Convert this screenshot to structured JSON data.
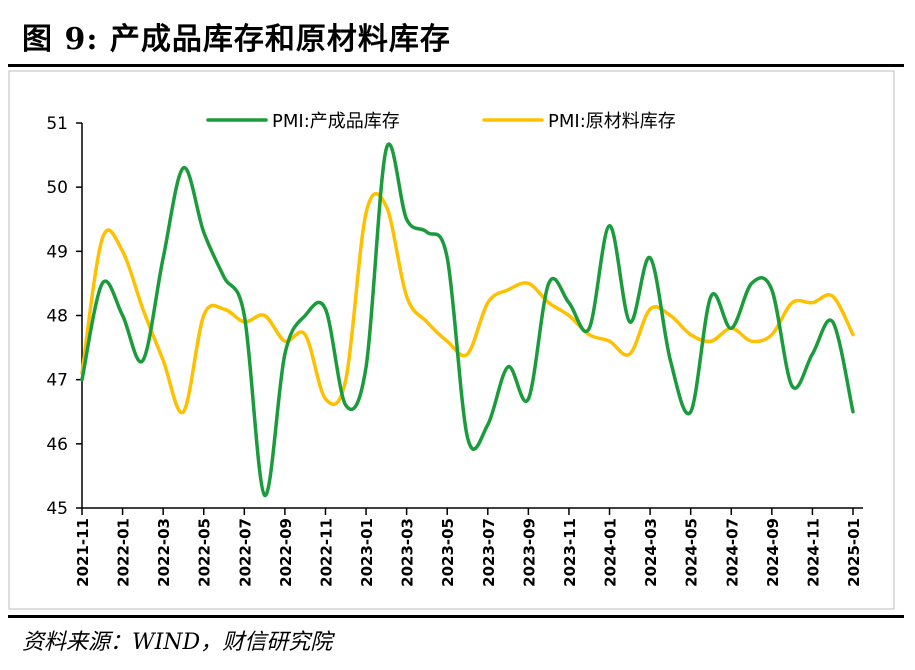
{
  "figure": {
    "title": "图 9:  产成品库存和原材料库存",
    "source": "资料来源：WIND，财信研究院"
  },
  "colors": {
    "series1": "#1a9b3c",
    "series2": "#ffc000",
    "axis": "#000000",
    "frame": "#bfbfbf"
  },
  "chart_data": {
    "type": "line",
    "x": [
      "2021-11",
      "2021-12",
      "2022-01",
      "2022-02",
      "2022-03",
      "2022-04",
      "2022-05",
      "2022-06",
      "2022-07",
      "2022-08",
      "2022-09",
      "2022-10",
      "2022-11",
      "2022-12",
      "2023-01",
      "2023-02",
      "2023-03",
      "2023-04",
      "2023-05",
      "2023-06",
      "2023-07",
      "2023-08",
      "2023-09",
      "2023-10",
      "2023-11",
      "2023-12",
      "2024-01",
      "2024-02",
      "2024-03",
      "2024-04",
      "2024-05",
      "2024-06",
      "2024-07",
      "2024-08",
      "2024-09",
      "2024-10",
      "2024-11",
      "2024-12",
      "2025-01"
    ],
    "tick_labels": [
      "2021-11",
      "2022-01",
      "2022-03",
      "2022-05",
      "2022-07",
      "2022-09",
      "2022-11",
      "2023-01",
      "2023-03",
      "2023-05",
      "2023-07",
      "2023-09",
      "2023-11",
      "2024-01",
      "2024-03",
      "2024-05",
      "2024-07",
      "2024-09",
      "2024-11",
      "2025-01"
    ],
    "series": [
      {
        "name": "PMI:产成品库存",
        "values": [
          47.0,
          48.5,
          48.0,
          47.3,
          48.9,
          50.3,
          49.3,
          48.6,
          48.0,
          45.2,
          47.4,
          48.0,
          48.1,
          46.6,
          47.2,
          50.6,
          49.5,
          49.3,
          48.9,
          46.1,
          46.3,
          47.2,
          46.7,
          48.5,
          48.2,
          47.8,
          49.4,
          47.9,
          48.9,
          47.3,
          46.5,
          48.3,
          47.8,
          48.5,
          48.4,
          46.9,
          47.4,
          47.9,
          46.5
        ]
      },
      {
        "name": "PMI:原材料库存",
        "values": [
          47.1,
          49.2,
          49.0,
          48.1,
          47.3,
          46.5,
          48.0,
          48.1,
          47.9,
          48.0,
          47.6,
          47.7,
          46.7,
          47.0,
          49.6,
          49.7,
          48.3,
          47.9,
          47.6,
          47.4,
          48.2,
          48.4,
          48.5,
          48.2,
          48.0,
          47.7,
          47.6,
          47.4,
          48.1,
          48.0,
          47.7,
          47.6,
          47.8,
          47.6,
          47.7,
          48.2,
          48.2,
          48.3,
          47.7
        ]
      }
    ],
    "ylim": [
      45,
      51
    ],
    "yticks": [
      45,
      46,
      47,
      48,
      49,
      50,
      51
    ],
    "grid": false,
    "legend_position": "top"
  }
}
